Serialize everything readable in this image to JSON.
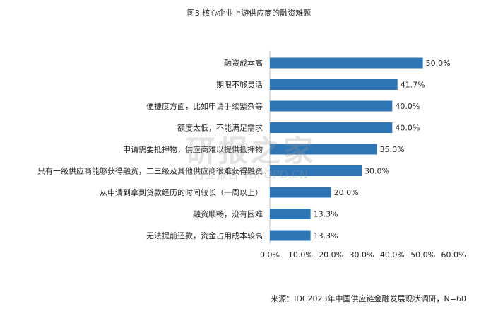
{
  "chart_data": {
    "type": "bar",
    "orientation": "horizontal",
    "title": "图3 核心企业上游供应商的融资难题",
    "categories": [
      "融资成本高",
      "期限不够灵活",
      "便捷度方面，比如申请手续繁杂等",
      "额度太低，不能满足需求",
      "申请需要抵押物，供应商难以提供抵押物",
      "只有一级供应商能够获得融资，二三级及其他供应商很难获得融资",
      "从申请到拿到贷款经历的时间较长（一周以上）",
      "融资顺畅，没有困难",
      "无法提前还款，资金占用成本较高"
    ],
    "values": [
      50.0,
      41.7,
      40.0,
      40.0,
      35.0,
      30.0,
      20.0,
      13.3,
      13.3
    ],
    "value_labels": [
      "50.0%",
      "41.7%",
      "40.0%",
      "40.0%",
      "35.0%",
      "30.0%",
      "20.0%",
      "13.3%",
      "13.3%"
    ],
    "xlim": [
      0,
      60
    ],
    "xticks": [
      "0.0%",
      "10.0%",
      "20.0%",
      "30.0%",
      "40.0%",
      "50.0%",
      "60.0%"
    ],
    "grid": false,
    "bar_color": "#2e75b6",
    "source": "来源：IDC2023年中国供应链金融发展现状调研，N=60",
    "watermark": "研报之家 行业报告 YBPOPO.CN"
  }
}
